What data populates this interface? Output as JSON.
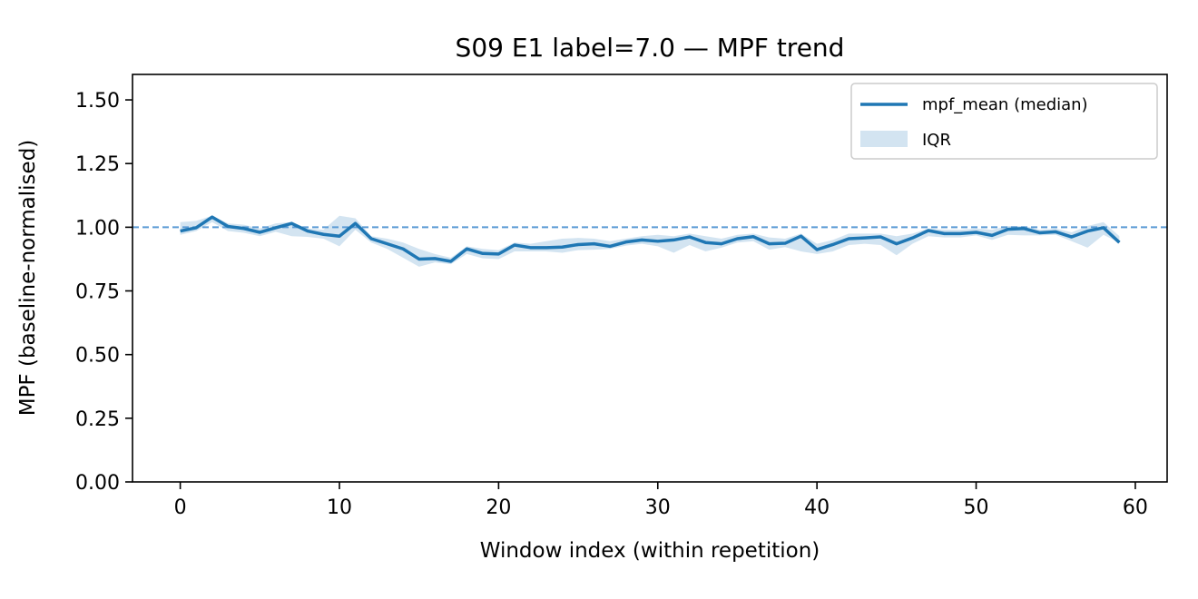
{
  "chart_data": {
    "type": "line",
    "title": "S09 E1 label=7.0 — MPF trend",
    "xlabel": "Window index (within repetition)",
    "ylabel": "MPF (baseline-normalised)",
    "xlim": [
      -3,
      62
    ],
    "ylim": [
      0,
      1.6
    ],
    "x_ticks": [
      0,
      10,
      20,
      30,
      40,
      50,
      60
    ],
    "x_tick_labels": [
      "0",
      "10",
      "20",
      "30",
      "40",
      "50",
      "60"
    ],
    "y_ticks": [
      0,
      0.25,
      0.5,
      0.75,
      1.0,
      1.25,
      1.5
    ],
    "y_tick_labels": [
      "0.00",
      "0.25",
      "0.50",
      "0.75",
      "1.00",
      "1.25",
      "1.50"
    ],
    "grid": false,
    "legend_position": "top-right",
    "reference_line": {
      "y": 1.0,
      "style": "dashed",
      "color": "#5b9bd5"
    },
    "series": [
      {
        "name": "mpf_mean (median)",
        "kind": "line",
        "color": "#1f77b4",
        "x": [
          0,
          1,
          2,
          3,
          4,
          5,
          6,
          7,
          8,
          9,
          10,
          11,
          12,
          13,
          14,
          15,
          16,
          17,
          18,
          19,
          20,
          21,
          22,
          23,
          24,
          25,
          26,
          27,
          28,
          29,
          30,
          31,
          32,
          33,
          34,
          35,
          36,
          37,
          38,
          39,
          40,
          41,
          42,
          43,
          44,
          45,
          46,
          47,
          48,
          49,
          50,
          51,
          52,
          53,
          54,
          55,
          56,
          57,
          58,
          59
        ],
        "values": [
          0.985,
          0.998,
          1.04,
          1.003,
          0.995,
          0.98,
          0.998,
          1.015,
          0.985,
          0.972,
          0.965,
          1.015,
          0.955,
          0.935,
          0.915,
          0.875,
          0.877,
          0.866,
          0.915,
          0.897,
          0.895,
          0.93,
          0.92,
          0.92,
          0.922,
          0.932,
          0.935,
          0.925,
          0.942,
          0.95,
          0.945,
          0.95,
          0.962,
          0.94,
          0.935,
          0.955,
          0.963,
          0.935,
          0.937,
          0.965,
          0.912,
          0.932,
          0.955,
          0.958,
          0.962,
          0.935,
          0.958,
          0.987,
          0.975,
          0.975,
          0.98,
          0.968,
          0.992,
          0.995,
          0.978,
          0.982,
          0.962,
          0.985,
          0.998,
          0.94
        ]
      },
      {
        "name": "IQR",
        "kind": "band",
        "color": "#aecde5",
        "x": [
          0,
          1,
          2,
          3,
          4,
          5,
          6,
          7,
          8,
          9,
          10,
          11,
          12,
          13,
          14,
          15,
          16,
          17,
          18,
          19,
          20,
          21,
          22,
          23,
          24,
          25,
          26,
          27,
          28,
          29,
          30,
          31,
          32,
          33,
          34,
          35,
          36,
          37,
          38,
          39,
          40,
          41,
          42,
          43,
          44,
          45,
          46,
          47,
          48,
          49,
          50,
          51,
          52,
          53,
          54,
          55,
          56,
          57,
          58,
          59
        ],
        "lower": [
          0.97,
          0.985,
          1.02,
          0.985,
          0.978,
          0.965,
          0.982,
          0.965,
          0.962,
          0.955,
          0.925,
          0.99,
          0.94,
          0.915,
          0.88,
          0.845,
          0.862,
          0.855,
          0.895,
          0.878,
          0.875,
          0.905,
          0.905,
          0.905,
          0.9,
          0.91,
          0.912,
          0.915,
          0.928,
          0.935,
          0.925,
          0.9,
          0.93,
          0.905,
          0.92,
          0.94,
          0.945,
          0.912,
          0.922,
          0.905,
          0.895,
          0.905,
          0.93,
          0.935,
          0.93,
          0.89,
          0.935,
          0.965,
          0.96,
          0.96,
          0.968,
          0.95,
          0.97,
          0.968,
          0.968,
          0.97,
          0.945,
          0.92,
          0.97,
          0.94
        ],
        "upper": [
          1.02,
          1.025,
          1.045,
          1.015,
          1.01,
          0.995,
          1.015,
          1.02,
          0.995,
          0.99,
          1.045,
          1.035,
          0.965,
          0.955,
          0.94,
          0.915,
          0.895,
          0.88,
          0.925,
          0.915,
          0.91,
          0.94,
          0.935,
          0.945,
          0.955,
          0.958,
          0.955,
          0.945,
          0.955,
          0.965,
          0.97,
          0.965,
          0.975,
          0.965,
          0.955,
          0.97,
          0.975,
          0.96,
          0.955,
          0.975,
          0.935,
          0.95,
          0.975,
          0.975,
          0.975,
          0.965,
          0.975,
          0.995,
          0.99,
          0.99,
          0.995,
          0.99,
          1.005,
          1.005,
          0.99,
          0.995,
          0.98,
          1.005,
          1.02,
          0.965
        ]
      }
    ]
  }
}
